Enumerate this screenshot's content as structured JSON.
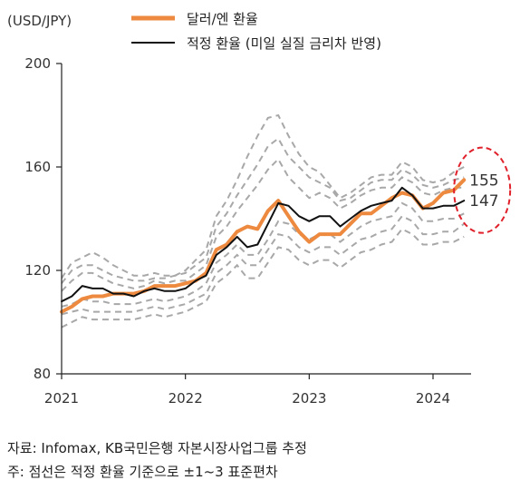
{
  "chart_data": {
    "type": "line",
    "unit_label": "(USD/JPY)",
    "x_tick_labels": [
      "2021",
      "2022",
      "2023",
      "2024"
    ],
    "y_ticks": [
      80,
      120,
      160,
      200
    ],
    "ylim": [
      80,
      200
    ],
    "xlim": [
      2021.0,
      2024.45
    ],
    "grid": false,
    "legend": {
      "placement": "top",
      "entries": [
        {
          "label": "달러/엔 환율",
          "color": "#ed8a3f",
          "style": "thick-solid"
        },
        {
          "label": "적정 환율 (미일 실질 금리차 반영)",
          "color": "#111111",
          "style": "solid"
        }
      ]
    },
    "x": [
      2021.0,
      2021.083,
      2021.167,
      2021.25,
      2021.333,
      2021.417,
      2021.5,
      2021.583,
      2021.667,
      2021.75,
      2021.833,
      2021.917,
      2022.0,
      2022.083,
      2022.167,
      2022.25,
      2022.333,
      2022.417,
      2022.5,
      2022.583,
      2022.667,
      2022.75,
      2022.833,
      2022.917,
      2023.0,
      2023.083,
      2023.167,
      2023.25,
      2023.333,
      2023.417,
      2023.5,
      2023.583,
      2023.667,
      2023.75,
      2023.833,
      2023.917,
      2024.0,
      2024.083,
      2024.167,
      2024.25
    ],
    "series": [
      {
        "name": "달러/엔 환율",
        "color": "#ed8a3f",
        "width": 4,
        "values": [
          104,
          106,
          109,
          110,
          110,
          111,
          111,
          111,
          112,
          114,
          114,
          114,
          115,
          116,
          119,
          128,
          130,
          135,
          137,
          136,
          143,
          147,
          141,
          135,
          131,
          134,
          134,
          134,
          138,
          142,
          142,
          145,
          148,
          150,
          149,
          144,
          146,
          150,
          151,
          155
        ]
      },
      {
        "name": "적정 환율 (미일 실질 금리차 반영)",
        "color": "#111111",
        "width": 2,
        "values": [
          108,
          110,
          114,
          113,
          113,
          111,
          111,
          110,
          112,
          113,
          112,
          112,
          113,
          116,
          118,
          126,
          129,
          133,
          129,
          130,
          138,
          146,
          145,
          141,
          139,
          141,
          141,
          137,
          140,
          143,
          145,
          146,
          147,
          152,
          149,
          144,
          144,
          145,
          145,
          147
        ]
      },
      {
        "name": "",
        "color": "#a8a8a8",
        "style": "dashed",
        "values": [
          117,
          123,
          125,
          127,
          125,
          122,
          120,
          118,
          118,
          119,
          118,
          118,
          120,
          124,
          128,
          141,
          147,
          155,
          164,
          172,
          179,
          180,
          172,
          165,
          160,
          158,
          153,
          148,
          150,
          153,
          156,
          157,
          157,
          162,
          160,
          155,
          154,
          155,
          158,
          160
        ]
      },
      {
        "name": "",
        "color": "#a8a8a8",
        "style": "dashed",
        "values": [
          115,
          120,
          122,
          122,
          120,
          118,
          117,
          116,
          116,
          117,
          117,
          118,
          119,
          122,
          125,
          137,
          142,
          149,
          155,
          161,
          168,
          171,
          164,
          160,
          156,
          154,
          152,
          147,
          148,
          151,
          154,
          155,
          155,
          159,
          157,
          153,
          152,
          153,
          155,
          156
        ]
      },
      {
        "name": "",
        "color": "#a8a8a8",
        "style": "dashed",
        "values": [
          112,
          116,
          119,
          119,
          117,
          115,
          114,
          113,
          114,
          116,
          115,
          116,
          116,
          119,
          122,
          133,
          137,
          143,
          148,
          153,
          159,
          163,
          156,
          152,
          148,
          150,
          148,
          144,
          146,
          149,
          151,
          152,
          152,
          156,
          154,
          150,
          149,
          151,
          152,
          152
        ]
      },
      {
        "name": "",
        "color": "#a8a8a8",
        "style": "dashed",
        "values": [
          106,
          107,
          109,
          108,
          108,
          107,
          107,
          107,
          108,
          109,
          108,
          109,
          110,
          112,
          115,
          123,
          126,
          130,
          126,
          126,
          132,
          139,
          138,
          134,
          132,
          134,
          134,
          131,
          134,
          137,
          139,
          140,
          141,
          146,
          144,
          139,
          139,
          140,
          140,
          142
        ]
      },
      {
        "name": "",
        "color": "#a8a8a8",
        "style": "dashed",
        "values": [
          103,
          104,
          105,
          104,
          104,
          104,
          104,
          104,
          105,
          106,
          105,
          106,
          107,
          109,
          111,
          119,
          122,
          126,
          122,
          122,
          128,
          134,
          133,
          129,
          127,
          129,
          129,
          126,
          129,
          132,
          133,
          135,
          136,
          141,
          139,
          134,
          134,
          135,
          135,
          138
        ]
      },
      {
        "name": "",
        "color": "#a8a8a8",
        "style": "dashed",
        "values": [
          98,
          100,
          102,
          101,
          101,
          101,
          101,
          101,
          102,
          103,
          102,
          103,
          104,
          106,
          108,
          115,
          118,
          122,
          117,
          117,
          123,
          129,
          128,
          124,
          122,
          124,
          124,
          121,
          124,
          127,
          128,
          130,
          131,
          136,
          134,
          130,
          130,
          131,
          131,
          133
        ]
      }
    ],
    "annotations": [
      {
        "text": "155",
        "ref_series": 0
      },
      {
        "text": "147",
        "ref_series": 1
      }
    ],
    "highlight": {
      "shape": "dashed-ellipse",
      "color": "#e0202a",
      "around_x": 2024.25
    }
  },
  "footnotes": {
    "source": "자료: Infomax, KB국민은행 자본시장사업그룹 추정",
    "note": "주: 점선은 적정 환율 기준으로 ±1~3 표준편차"
  }
}
